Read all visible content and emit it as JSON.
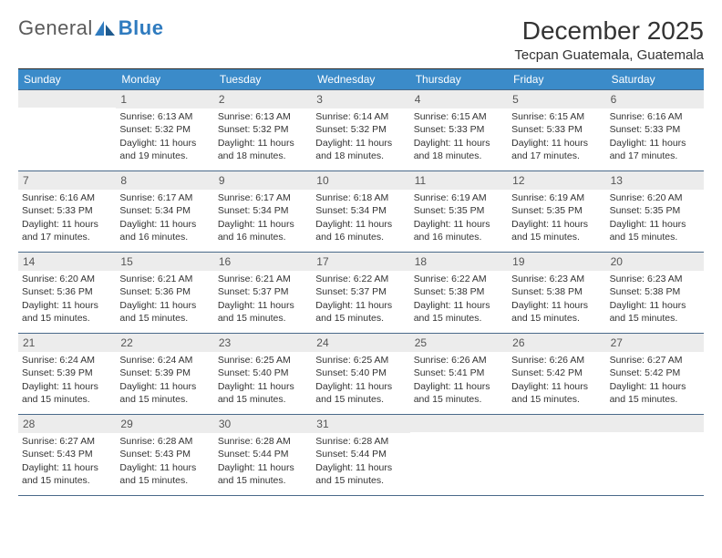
{
  "logo": {
    "word1": "General",
    "word2": "Blue",
    "color1": "#5a5a5a",
    "color2": "#2f7bbf"
  },
  "title": "December 2025",
  "location": "Tecpan Guatemala, Guatemala",
  "headerBg": "#3b8bc9",
  "dayNames": [
    "Sunday",
    "Monday",
    "Tuesday",
    "Wednesday",
    "Thursday",
    "Friday",
    "Saturday"
  ],
  "startOffset": 1,
  "days": [
    {
      "n": "1",
      "sr": "6:13 AM",
      "ss": "5:32 PM",
      "dl": "11 hours and 19 minutes."
    },
    {
      "n": "2",
      "sr": "6:13 AM",
      "ss": "5:32 PM",
      "dl": "11 hours and 18 minutes."
    },
    {
      "n": "3",
      "sr": "6:14 AM",
      "ss": "5:32 PM",
      "dl": "11 hours and 18 minutes."
    },
    {
      "n": "4",
      "sr": "6:15 AM",
      "ss": "5:33 PM",
      "dl": "11 hours and 18 minutes."
    },
    {
      "n": "5",
      "sr": "6:15 AM",
      "ss": "5:33 PM",
      "dl": "11 hours and 17 minutes."
    },
    {
      "n": "6",
      "sr": "6:16 AM",
      "ss": "5:33 PM",
      "dl": "11 hours and 17 minutes."
    },
    {
      "n": "7",
      "sr": "6:16 AM",
      "ss": "5:33 PM",
      "dl": "11 hours and 17 minutes."
    },
    {
      "n": "8",
      "sr": "6:17 AM",
      "ss": "5:34 PM",
      "dl": "11 hours and 16 minutes."
    },
    {
      "n": "9",
      "sr": "6:17 AM",
      "ss": "5:34 PM",
      "dl": "11 hours and 16 minutes."
    },
    {
      "n": "10",
      "sr": "6:18 AM",
      "ss": "5:34 PM",
      "dl": "11 hours and 16 minutes."
    },
    {
      "n": "11",
      "sr": "6:19 AM",
      "ss": "5:35 PM",
      "dl": "11 hours and 16 minutes."
    },
    {
      "n": "12",
      "sr": "6:19 AM",
      "ss": "5:35 PM",
      "dl": "11 hours and 15 minutes."
    },
    {
      "n": "13",
      "sr": "6:20 AM",
      "ss": "5:35 PM",
      "dl": "11 hours and 15 minutes."
    },
    {
      "n": "14",
      "sr": "6:20 AM",
      "ss": "5:36 PM",
      "dl": "11 hours and 15 minutes."
    },
    {
      "n": "15",
      "sr": "6:21 AM",
      "ss": "5:36 PM",
      "dl": "11 hours and 15 minutes."
    },
    {
      "n": "16",
      "sr": "6:21 AM",
      "ss": "5:37 PM",
      "dl": "11 hours and 15 minutes."
    },
    {
      "n": "17",
      "sr": "6:22 AM",
      "ss": "5:37 PM",
      "dl": "11 hours and 15 minutes."
    },
    {
      "n": "18",
      "sr": "6:22 AM",
      "ss": "5:38 PM",
      "dl": "11 hours and 15 minutes."
    },
    {
      "n": "19",
      "sr": "6:23 AM",
      "ss": "5:38 PM",
      "dl": "11 hours and 15 minutes."
    },
    {
      "n": "20",
      "sr": "6:23 AM",
      "ss": "5:38 PM",
      "dl": "11 hours and 15 minutes."
    },
    {
      "n": "21",
      "sr": "6:24 AM",
      "ss": "5:39 PM",
      "dl": "11 hours and 15 minutes."
    },
    {
      "n": "22",
      "sr": "6:24 AM",
      "ss": "5:39 PM",
      "dl": "11 hours and 15 minutes."
    },
    {
      "n": "23",
      "sr": "6:25 AM",
      "ss": "5:40 PM",
      "dl": "11 hours and 15 minutes."
    },
    {
      "n": "24",
      "sr": "6:25 AM",
      "ss": "5:40 PM",
      "dl": "11 hours and 15 minutes."
    },
    {
      "n": "25",
      "sr": "6:26 AM",
      "ss": "5:41 PM",
      "dl": "11 hours and 15 minutes."
    },
    {
      "n": "26",
      "sr": "6:26 AM",
      "ss": "5:42 PM",
      "dl": "11 hours and 15 minutes."
    },
    {
      "n": "27",
      "sr": "6:27 AM",
      "ss": "5:42 PM",
      "dl": "11 hours and 15 minutes."
    },
    {
      "n": "28",
      "sr": "6:27 AM",
      "ss": "5:43 PM",
      "dl": "11 hours and 15 minutes."
    },
    {
      "n": "29",
      "sr": "6:28 AM",
      "ss": "5:43 PM",
      "dl": "11 hours and 15 minutes."
    },
    {
      "n": "30",
      "sr": "6:28 AM",
      "ss": "5:44 PM",
      "dl": "11 hours and 15 minutes."
    },
    {
      "n": "31",
      "sr": "6:28 AM",
      "ss": "5:44 PM",
      "dl": "11 hours and 15 minutes."
    }
  ],
  "labels": {
    "sunrise": "Sunrise: ",
    "sunset": "Sunset: ",
    "daylight": "Daylight: "
  }
}
